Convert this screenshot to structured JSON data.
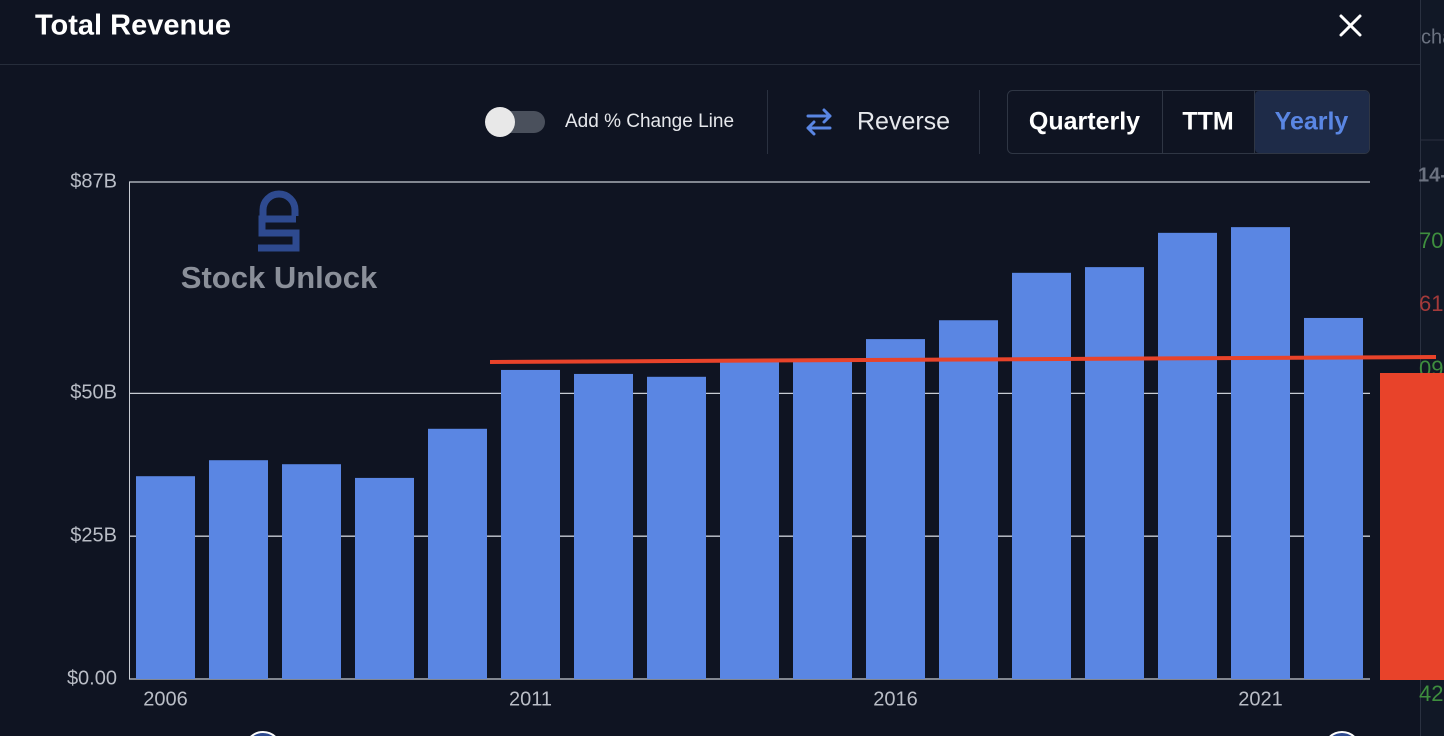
{
  "header": {
    "title": "Total Revenue"
  },
  "controls": {
    "toggle_label": "Add % Change Line",
    "reverse": "Reverse",
    "periods": [
      "Quarterly",
      "TTM",
      "Yearly"
    ],
    "active_period": 2
  },
  "watermark": "Stock Unlock",
  "chart_data": {
    "type": "bar",
    "categories": [
      "2006",
      null,
      null,
      null,
      null,
      "2011",
      null,
      null,
      null,
      null,
      "2016",
      null,
      null,
      null,
      null,
      "2021",
      null
    ],
    "values": [
      35.5,
      38.3,
      37.6,
      35.2,
      43.8,
      54.1,
      53.4,
      52.9,
      55.7,
      55.7,
      59.5,
      62.8,
      71.1,
      72.1,
      78.1,
      79.1,
      63.2
    ],
    "color": "#5a86e3",
    "ylim": [
      0,
      87
    ],
    "yticks": [
      {
        "value": 0,
        "label": "$0.00"
      },
      {
        "value": 25,
        "label": "$25B"
      },
      {
        "value": 50,
        "label": "$50B"
      },
      {
        "value": 87,
        "label": "$87B"
      }
    ],
    "grid": true
  },
  "background_fragments": [
    "cha",
    "14-",
    "70",
    "61",
    "09",
    "42"
  ]
}
